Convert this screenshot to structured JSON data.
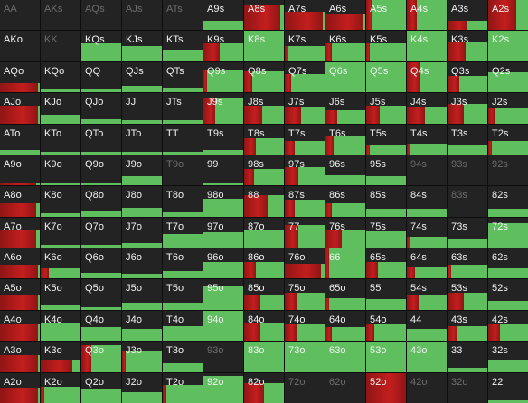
{
  "colors": {
    "green": "#5fbf5f",
    "red": "#c41e1e",
    "darkred": "#8f1515",
    "empty": "#232323",
    "dim_text": "#6d6d6d",
    "text": "#f2f2f2"
  },
  "rows": [
    [
      [
        "AA",
        0,
        0,
        1
      ],
      [
        "AKs",
        0,
        0,
        1
      ],
      [
        "AQs",
        0,
        0,
        1
      ],
      [
        "AJs",
        0,
        0,
        1
      ],
      [
        "ATs",
        0,
        0,
        1
      ],
      [
        "A9s",
        0.32,
        0,
        0
      ],
      [
        "A8s",
        0.82,
        0.92,
        0
      ],
      [
        "A7s",
        0.6,
        0.95,
        0
      ],
      [
        "A6s",
        0.55,
        0.95,
        0
      ],
      [
        "A5s",
        1,
        0.15,
        0
      ],
      [
        "A4s",
        1,
        0.25,
        0
      ],
      [
        "A3s",
        0.3,
        0.5,
        0
      ],
      [
        "A2s",
        1,
        0.7,
        0
      ]
    ],
    [
      [
        "AKo",
        0,
        0,
        0
      ],
      [
        "KK",
        0,
        0,
        1
      ],
      [
        "KQs",
        0.58,
        0,
        0
      ],
      [
        "KJs",
        0.5,
        0,
        0
      ],
      [
        "KTs",
        0.38,
        0,
        0
      ],
      [
        "K9s",
        0.58,
        0.4,
        0
      ],
      [
        "K8s",
        1,
        0,
        0
      ],
      [
        "K7s",
        0.5,
        0.1,
        0
      ],
      [
        "K6s",
        0.6,
        0.15,
        0
      ],
      [
        "K5s",
        0.6,
        0.1,
        0
      ],
      [
        "K4s",
        1,
        0,
        0
      ],
      [
        "K3s",
        0.65,
        0.45,
        0
      ],
      [
        "K2s",
        1,
        0,
        0
      ]
    ],
    [
      [
        "AQo",
        0.3,
        0.95,
        0
      ],
      [
        "KQo",
        0.1,
        0,
        0
      ],
      [
        "QQ",
        0.1,
        0,
        0
      ],
      [
        "QJs",
        0.2,
        0,
        0
      ],
      [
        "QTs",
        0.15,
        0,
        0
      ],
      [
        "Q9s",
        0.75,
        0.1,
        0
      ],
      [
        "Q8s",
        0.7,
        0.2,
        0
      ],
      [
        "Q7s",
        0.6,
        0.15,
        0
      ],
      [
        "Q6s",
        1,
        0,
        0
      ],
      [
        "Q5s",
        1,
        0,
        0
      ],
      [
        "Q4s",
        1,
        0.35,
        0
      ],
      [
        "Q3s",
        0.55,
        0.3,
        0
      ],
      [
        "Q2s",
        0.65,
        0,
        0
      ]
    ],
    [
      [
        "AJo",
        0.6,
        0.95,
        0
      ],
      [
        "KJo",
        0.3,
        0,
        0
      ],
      [
        "QJo",
        0.15,
        0,
        0
      ],
      [
        "JJ",
        0.1,
        0,
        0
      ],
      [
        "JTs",
        0.1,
        0,
        0
      ],
      [
        "J9s",
        0.85,
        0.3,
        0
      ],
      [
        "J8s",
        0.6,
        0.45,
        0
      ],
      [
        "J7s",
        0.55,
        0.4,
        0
      ],
      [
        "J6s",
        0.45,
        0.3,
        0
      ],
      [
        "J5s",
        0.6,
        0.35,
        0
      ],
      [
        "J4s",
        0.55,
        0.45,
        0
      ],
      [
        "J3s",
        0.65,
        0.4,
        0
      ],
      [
        "J2s",
        0.5,
        0.15,
        0
      ]
    ],
    [
      [
        "ATo",
        0.15,
        0,
        0
      ],
      [
        "KTo",
        0.1,
        0,
        0
      ],
      [
        "QTo",
        0.1,
        0,
        0
      ],
      [
        "JTo",
        0.1,
        0,
        0
      ],
      [
        "TT",
        0.1,
        0,
        0
      ],
      [
        "T9s",
        0.15,
        0,
        0
      ],
      [
        "T8s",
        0.55,
        0.3,
        0
      ],
      [
        "T7s",
        0.45,
        0.25,
        0
      ],
      [
        "T6s",
        0.6,
        0.2,
        0
      ],
      [
        "T5s",
        0.3,
        0.1,
        0
      ],
      [
        "T4s",
        0.35,
        0.1,
        0
      ],
      [
        "T3s",
        0.3,
        0,
        0
      ],
      [
        "T2s",
        0.45,
        0.1,
        0
      ]
    ],
    [
      [
        "A9o",
        0.1,
        0.9,
        0
      ],
      [
        "K9o",
        0.1,
        0,
        0
      ],
      [
        "Q9o",
        0.1,
        0,
        0
      ],
      [
        "J9o",
        0.3,
        0,
        0
      ],
      [
        "T9o",
        0,
        0,
        1
      ],
      [
        "99",
        0.1,
        0,
        0
      ],
      [
        "98s",
        0.55,
        0.25,
        0
      ],
      [
        "97s",
        0.6,
        0.35,
        0
      ],
      [
        "96s",
        0.35,
        0,
        0
      ],
      [
        "95s",
        0.3,
        0,
        0
      ],
      [
        "94s",
        0,
        0,
        1
      ],
      [
        "93s",
        0,
        0,
        1
      ],
      [
        "92s",
        0,
        0,
        1
      ]
    ],
    [
      [
        "A8o",
        0.45,
        0.9,
        0
      ],
      [
        "K8o",
        0.1,
        0,
        0
      ],
      [
        "Q8o",
        0.2,
        0,
        0
      ],
      [
        "J8o",
        0.3,
        0,
        0
      ],
      [
        "T8o",
        0.15,
        0,
        0
      ],
      [
        "98o",
        0.6,
        0,
        0
      ],
      [
        "88",
        0.7,
        0.6,
        0
      ],
      [
        "87s",
        0.55,
        0.25,
        0
      ],
      [
        "86s",
        0.45,
        0.15,
        0
      ],
      [
        "85s",
        0.25,
        0,
        0
      ],
      [
        "84s",
        0.25,
        0,
        0
      ],
      [
        "83s",
        0,
        0,
        1
      ],
      [
        "82s",
        0.25,
        0,
        0
      ]
    ],
    [
      [
        "A7o",
        0.6,
        0.9,
        0
      ],
      [
        "K7o",
        0.1,
        0,
        0
      ],
      [
        "Q7o",
        0.1,
        0,
        0
      ],
      [
        "J7o",
        0.15,
        0,
        0
      ],
      [
        "T7o",
        0.45,
        0,
        0
      ],
      [
        "97o",
        0.5,
        0,
        0
      ],
      [
        "87o",
        0.6,
        0,
        0
      ],
      [
        "77",
        0.75,
        0.35,
        0
      ],
      [
        "76s",
        0.6,
        0.4,
        0
      ],
      [
        "75s",
        0.55,
        0,
        0
      ],
      [
        "74s",
        0.35,
        0.1,
        0
      ],
      [
        "73s",
        0.3,
        0,
        0
      ],
      [
        "72s",
        0.8,
        0,
        0
      ]
    ],
    [
      [
        "A6o",
        0.45,
        0.95,
        0
      ],
      [
        "K6o",
        0.35,
        0.2,
        0
      ],
      [
        "Q6o",
        0.2,
        0,
        0
      ],
      [
        "J6o",
        0.15,
        0,
        0
      ],
      [
        "T6o",
        0.25,
        0,
        0
      ],
      [
        "96o",
        0.55,
        0,
        0
      ],
      [
        "86o",
        0.55,
        0.3,
        0
      ],
      [
        "76o",
        0.5,
        0.9,
        0
      ],
      [
        "66",
        1,
        0.1,
        0
      ],
      [
        "65s",
        0.55,
        0.3,
        0
      ],
      [
        "64s",
        0.4,
        0.2,
        0
      ],
      [
        "63s",
        0.45,
        0.1,
        0
      ],
      [
        "62s",
        0.35,
        0,
        0
      ]
    ],
    [
      [
        "A5o",
        0.5,
        0.95,
        0
      ],
      [
        "K5o",
        0.15,
        0,
        0
      ],
      [
        "Q5o",
        0.1,
        0,
        0
      ],
      [
        "J5o",
        0.25,
        0,
        0
      ],
      [
        "T5o",
        0.25,
        0,
        0
      ],
      [
        "95o",
        0.8,
        0,
        0
      ],
      [
        "85o",
        0.5,
        0.4,
        0
      ],
      [
        "75o",
        0.55,
        0.3,
        0
      ],
      [
        "65o",
        0.4,
        0.1,
        0
      ],
      [
        "55",
        0.35,
        0,
        0
      ],
      [
        "54s",
        0.5,
        0.3,
        0
      ],
      [
        "53s",
        0.55,
        0.4,
        0
      ],
      [
        "52s",
        0.3,
        0,
        0
      ]
    ],
    [
      [
        "A4o",
        0.55,
        0.95,
        0
      ],
      [
        "K4o",
        0.6,
        0,
        0
      ],
      [
        "Q4o",
        0.45,
        0,
        0
      ],
      [
        "J4o",
        0.4,
        0,
        0
      ],
      [
        "T4o",
        0.5,
        0,
        0
      ],
      [
        "94o",
        1,
        0,
        0
      ],
      [
        "84o",
        0.6,
        0.4,
        0
      ],
      [
        "74o",
        0.55,
        0.3,
        0
      ],
      [
        "64o",
        0.45,
        0.15,
        0
      ],
      [
        "54o",
        0.55,
        0.2,
        0
      ],
      [
        "44",
        0.4,
        0,
        0
      ],
      [
        "43s",
        0.5,
        0.25,
        0
      ],
      [
        "42s",
        0.55,
        0.3,
        0
      ]
    ],
    [
      [
        "A3o",
        0.55,
        0.95,
        0
      ],
      [
        "K3o",
        0.4,
        0.8,
        0
      ],
      [
        "Q3o",
        0.9,
        0.25,
        0
      ],
      [
        "J3o",
        0.7,
        0.1,
        0
      ],
      [
        "T3o",
        0.3,
        0,
        0
      ],
      [
        "93o",
        0,
        0,
        1
      ],
      [
        "83o",
        1,
        0,
        0
      ],
      [
        "73o",
        1,
        0,
        0
      ],
      [
        "63o",
        1,
        0,
        0
      ],
      [
        "53o",
        1,
        0,
        0
      ],
      [
        "43o",
        1,
        0,
        0
      ],
      [
        "33",
        0.15,
        0,
        0
      ],
      [
        "32s",
        0.4,
        0,
        0
      ]
    ],
    [
      [
        "A2o",
        0.5,
        0.95,
        0
      ],
      [
        "K2o",
        0.55,
        0.1,
        0
      ],
      [
        "Q2o",
        0.45,
        0,
        0
      ],
      [
        "J2o",
        0.35,
        0,
        0
      ],
      [
        "T2o",
        0.6,
        0.1,
        0
      ],
      [
        "92o",
        0.9,
        0,
        0
      ],
      [
        "82o",
        0.65,
        0.5,
        0
      ],
      [
        "72o",
        0,
        0,
        1
      ],
      [
        "62o",
        0,
        0,
        1
      ],
      [
        "52o",
        1,
        1,
        0
      ],
      [
        "42o",
        0,
        0,
        1
      ],
      [
        "32o",
        0,
        0,
        1
      ],
      [
        "22",
        0.1,
        0,
        0
      ]
    ]
  ]
}
